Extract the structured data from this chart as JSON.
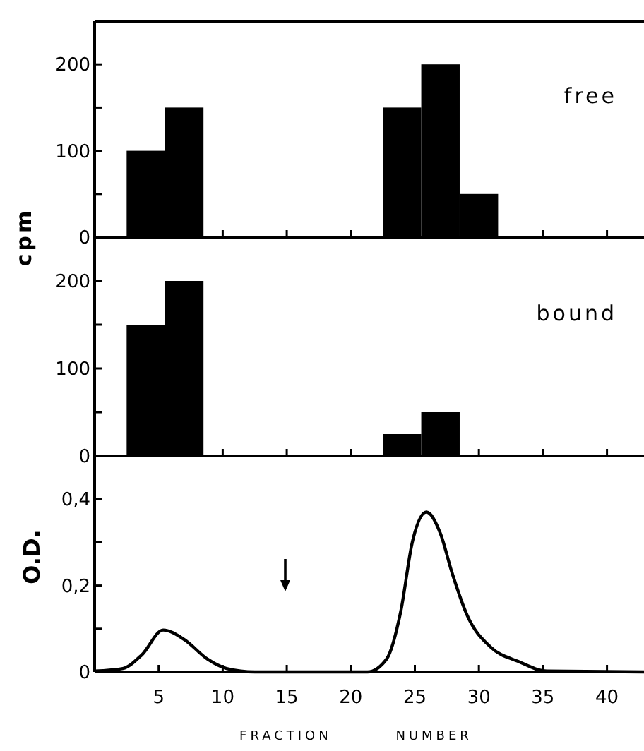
{
  "chart_data": [
    {
      "type": "bar",
      "ylabel": "cpm",
      "x": [
        4,
        7,
        24,
        27,
        30
      ],
      "values": [
        100,
        150,
        150,
        200,
        50
      ],
      "color": "#000000",
      "xlim": [
        0,
        43
      ],
      "xticks": [
        {
          "value": 5,
          "label": null
        },
        {
          "value": 10,
          "label": null
        },
        {
          "value": 15,
          "label": null
        },
        {
          "value": 20,
          "label": null
        },
        {
          "value": 25,
          "label": null
        },
        {
          "value": 30,
          "label": null
        },
        {
          "value": 35,
          "label": null
        },
        {
          "value": 40,
          "label": null
        }
      ],
      "ylim": [
        0,
        250
      ],
      "yticks": [
        0,
        {
          "value": 50,
          "label": null
        },
        100,
        {
          "value": 150,
          "label": null
        },
        200
      ],
      "tick_labels": "y",
      "annotations": [
        "free"
      ]
    },
    {
      "type": "bar",
      "x": [
        4,
        7,
        24,
        27
      ],
      "values": [
        150,
        200,
        25,
        50
      ],
      "color": "#000000",
      "xlim": [
        0,
        43
      ],
      "xticks": [
        {
          "value": 5,
          "label": null
        },
        {
          "value": 10,
          "label": null
        },
        {
          "value": 15,
          "label": null
        },
        {
          "value": 20,
          "label": null
        },
        {
          "value": 25,
          "label": null
        },
        {
          "value": 30,
          "label": null
        },
        {
          "value": 35,
          "label": null
        },
        {
          "value": 40,
          "label": null
        }
      ],
      "ylim": [
        0,
        250
      ],
      "yticks": [
        0,
        {
          "value": 50,
          "label": null
        },
        100,
        {
          "value": 150,
          "label": null
        },
        200
      ],
      "tick_labels": "y",
      "annotations": [
        "bound"
      ]
    },
    {
      "type": "line",
      "ylabel": "O.D.",
      "xlabel": "FRACTION NUMBER",
      "x": [
        0,
        2.2,
        3.7,
        5.35,
        7,
        8.8,
        10.3,
        12.5,
        21.3,
        22.8,
        23.9,
        24.8,
        25.9,
        27,
        27.9,
        29.1,
        30.9,
        33.1,
        35.3,
        43
      ],
      "values": [
        0.002,
        0.008,
        0.04,
        0.097,
        0.075,
        0.03,
        0.008,
        0,
        0,
        0.03,
        0.14,
        0.3,
        0.37,
        0.32,
        0.23,
        0.13,
        0.058,
        0.024,
        0.002,
        0
      ],
      "color": "#000000",
      "line_style": "solid",
      "xlim": [
        0,
        43
      ],
      "xticks": [
        5,
        10,
        15,
        20,
        25,
        30,
        35,
        40
      ],
      "ylim": [
        0,
        0.5
      ],
      "yticks": [
        0,
        {
          "value": 0.1,
          "label": null
        },
        {
          "value": 0.2,
          "label": "0,2"
        },
        {
          "value": 0.3,
          "label": null
        },
        {
          "value": 0.4,
          "label": "0,4"
        }
      ]
    }
  ]
}
